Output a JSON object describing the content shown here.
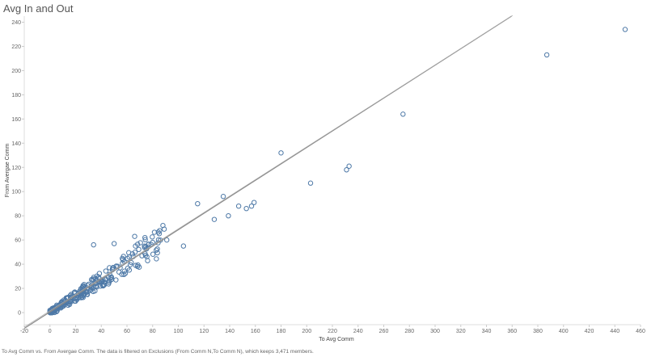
{
  "chart_data": {
    "type": "scatter",
    "title": "Avg In and Out",
    "xlabel": "To Avg Comm",
    "ylabel": "From Avergae Comm",
    "xlim": [
      -20,
      460
    ],
    "ylim": [
      -10,
      245
    ],
    "x_ticks": [
      -20,
      0,
      20,
      40,
      60,
      80,
      100,
      120,
      140,
      160,
      180,
      200,
      220,
      240,
      260,
      280,
      300,
      320,
      340,
      360,
      380,
      400,
      420,
      440,
      460
    ],
    "y_ticks": [
      0,
      20,
      40,
      60,
      80,
      100,
      120,
      140,
      160,
      180,
      200,
      220,
      240
    ],
    "grid": false,
    "marker": "open-circle",
    "colors": {
      "points": "#4e79a7",
      "trend": "#8a8a8a",
      "axis": "#dddddd"
    },
    "trend_line": {
      "slope": 0.68,
      "intercept": 0.5
    },
    "dense_cluster": {
      "x_range": [
        0,
        90
      ],
      "description_slope": 0.68,
      "n_points": 260
    },
    "outliers": [
      [
        448,
        234
      ],
      [
        387,
        213
      ],
      [
        275,
        164
      ],
      [
        233,
        121
      ],
      [
        231,
        118
      ],
      [
        203,
        107
      ],
      [
        180,
        132
      ],
      [
        135,
        96
      ],
      [
        115,
        90
      ],
      [
        147,
        88
      ],
      [
        159,
        91
      ],
      [
        157,
        88
      ],
      [
        153,
        86
      ],
      [
        139,
        80
      ],
      [
        128,
        77
      ],
      [
        104,
        55
      ],
      [
        88,
        72
      ],
      [
        89,
        69
      ],
      [
        34,
        56
      ],
      [
        50,
        57
      ],
      [
        66,
        63
      ],
      [
        74,
        62
      ],
      [
        91,
        60
      ],
      [
        80,
        58
      ]
    ]
  },
  "caption": "To Avg Comm vs. From Avergae Comm. The data is filtered on Exclusions (From Comm N,To Comm N), which keeps 3,471 members."
}
